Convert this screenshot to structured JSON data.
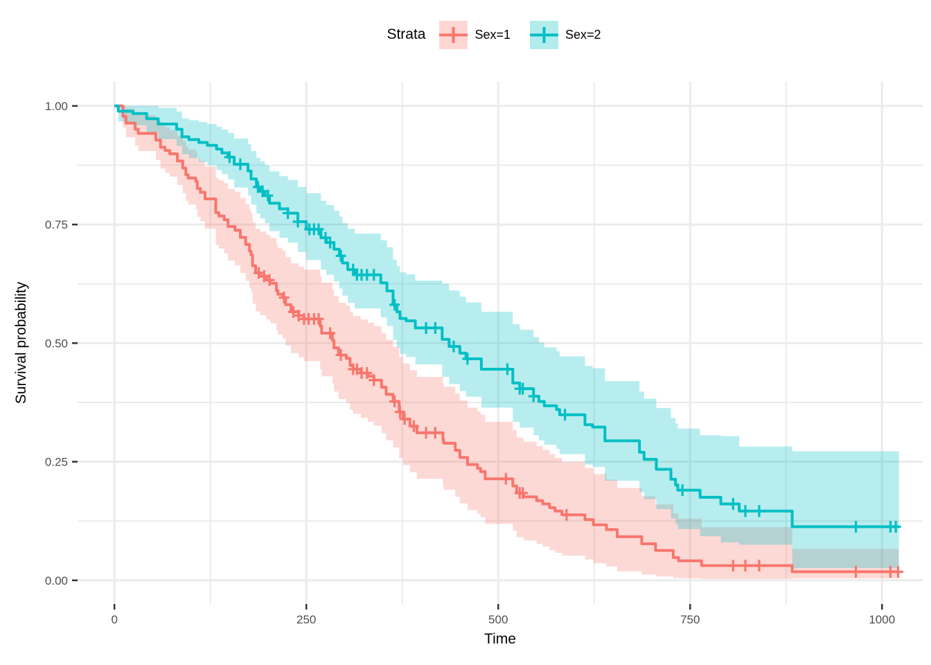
{
  "chart_data": {
    "type": "line",
    "subtype": "kaplan-meier-step-with-confidence-bands",
    "title": "",
    "xlabel": "Time",
    "ylabel": "Survival probability",
    "grid": true,
    "legend": {
      "title": "Strata",
      "position": "top",
      "entries": [
        {
          "label": "Sex=1",
          "color": "#F8766D"
        },
        {
          "label": "Sex=2",
          "color": "#00BFC4"
        }
      ]
    },
    "x_ticks": [
      0,
      250,
      500,
      750,
      1000
    ],
    "x_tick_labels": [
      "0",
      "250",
      "500",
      "750",
      "1000"
    ],
    "x_minor_ticks": [
      125,
      375,
      625,
      875
    ],
    "y_ticks": [
      0,
      0.25,
      0.5,
      0.75,
      1
    ],
    "y_tick_labels": [
      "0.00",
      "0.25",
      "0.50",
      "0.75",
      "1.00"
    ],
    "y_minor_ticks": [
      0.125,
      0.375,
      0.625,
      0.875
    ],
    "xlim": [
      -48,
      1053
    ],
    "ylim": [
      -0.05,
      1.051
    ],
    "series": [
      {
        "name": "Sex=1",
        "color": "#F8766D",
        "fill": "rgba(248,118,109,0.28)",
        "end_time": 1022,
        "points": [
          [
            0,
            1.0,
            1.0,
            1.0
          ],
          [
            11,
            0.978,
            0.954,
            1.0
          ],
          [
            15,
            0.964,
            0.934,
            0.995
          ],
          [
            27,
            0.951,
            0.916,
            0.987
          ],
          [
            31,
            0.942,
            0.905,
            0.981
          ],
          [
            54,
            0.928,
            0.886,
            0.972
          ],
          [
            60,
            0.913,
            0.868,
            0.96
          ],
          [
            66,
            0.906,
            0.859,
            0.955
          ],
          [
            72,
            0.899,
            0.851,
            0.949
          ],
          [
            82,
            0.884,
            0.833,
            0.937
          ],
          [
            89,
            0.869,
            0.816,
            0.926
          ],
          [
            93,
            0.855,
            0.8,
            0.914
          ],
          [
            96,
            0.848,
            0.792,
            0.908
          ],
          [
            106,
            0.841,
            0.782,
            0.903
          ],
          [
            108,
            0.826,
            0.766,
            0.89
          ],
          [
            112,
            0.818,
            0.757,
            0.884
          ],
          [
            118,
            0.804,
            0.741,
            0.872
          ],
          [
            132,
            0.775,
            0.707,
            0.848
          ],
          [
            136,
            0.768,
            0.699,
            0.843
          ],
          [
            143,
            0.76,
            0.689,
            0.837
          ],
          [
            148,
            0.746,
            0.674,
            0.825
          ],
          [
            157,
            0.738,
            0.664,
            0.819
          ],
          [
            164,
            0.723,
            0.648,
            0.806
          ],
          [
            171,
            0.708,
            0.631,
            0.793
          ],
          [
            176,
            0.694,
            0.616,
            0.781
          ],
          [
            178,
            0.686,
            0.607,
            0.774
          ],
          [
            180,
            0.663,
            0.583,
            0.754
          ],
          [
            184,
            0.648,
            0.567,
            0.741
          ],
          [
            190,
            0.641,
            0.559,
            0.735
          ],
          [
            198,
            0.633,
            0.55,
            0.728
          ],
          [
            203,
            0.626,
            0.542,
            0.722
          ],
          [
            211,
            0.611,
            0.526,
            0.708
          ],
          [
            213,
            0.603,
            0.518,
            0.701
          ],
          [
            219,
            0.596,
            0.51,
            0.695
          ],
          [
            223,
            0.581,
            0.495,
            0.681
          ],
          [
            230,
            0.566,
            0.479,
            0.668
          ],
          [
            240,
            0.558,
            0.47,
            0.661
          ],
          [
            247,
            0.551,
            0.462,
            0.655
          ],
          [
            268,
            0.536,
            0.445,
            0.641
          ],
          [
            270,
            0.521,
            0.43,
            0.627
          ],
          [
            284,
            0.506,
            0.414,
            0.613
          ],
          [
            286,
            0.49,
            0.398,
            0.599
          ],
          [
            292,
            0.475,
            0.382,
            0.585
          ],
          [
            302,
            0.468,
            0.374,
            0.579
          ],
          [
            307,
            0.453,
            0.359,
            0.565
          ],
          [
            311,
            0.445,
            0.351,
            0.557
          ],
          [
            321,
            0.437,
            0.342,
            0.55
          ],
          [
            330,
            0.43,
            0.334,
            0.543
          ],
          [
            338,
            0.422,
            0.326,
            0.536
          ],
          [
            348,
            0.407,
            0.31,
            0.521
          ],
          [
            354,
            0.392,
            0.295,
            0.507
          ],
          [
            363,
            0.377,
            0.28,
            0.492
          ],
          [
            371,
            0.355,
            0.258,
            0.471
          ],
          [
            376,
            0.34,
            0.243,
            0.457
          ],
          [
            385,
            0.325,
            0.228,
            0.443
          ],
          [
            394,
            0.311,
            0.214,
            0.429
          ],
          [
            428,
            0.296,
            0.198,
            0.415
          ],
          [
            429,
            0.289,
            0.191,
            0.408
          ],
          [
            444,
            0.274,
            0.176,
            0.394
          ],
          [
            450,
            0.259,
            0.162,
            0.379
          ],
          [
            460,
            0.244,
            0.148,
            0.364
          ],
          [
            473,
            0.236,
            0.14,
            0.356
          ],
          [
            477,
            0.229,
            0.133,
            0.349
          ],
          [
            483,
            0.214,
            0.119,
            0.334
          ],
          [
            519,
            0.199,
            0.105,
            0.317
          ],
          [
            524,
            0.184,
            0.091,
            0.301
          ],
          [
            533,
            0.176,
            0.084,
            0.292
          ],
          [
            550,
            0.168,
            0.077,
            0.283
          ],
          [
            558,
            0.161,
            0.071,
            0.275
          ],
          [
            567,
            0.153,
            0.064,
            0.266
          ],
          [
            574,
            0.146,
            0.058,
            0.258
          ],
          [
            583,
            0.138,
            0.052,
            0.249
          ],
          [
            613,
            0.128,
            0.044,
            0.237
          ],
          [
            624,
            0.117,
            0.036,
            0.224
          ],
          [
            641,
            0.107,
            0.029,
            0.212
          ],
          [
            655,
            0.092,
            0.019,
            0.195
          ],
          [
            687,
            0.077,
            0.012,
            0.177
          ],
          [
            705,
            0.063,
            0.008,
            0.16
          ],
          [
            728,
            0.048,
            0.005,
            0.141
          ],
          [
            735,
            0.041,
            0.004,
            0.13
          ],
          [
            765,
            0.031,
            0.003,
            0.112
          ],
          [
            883,
            0.018,
            0.004,
            0.066
          ]
        ],
        "censor_times": [
          188,
          195,
          202,
          221,
          233,
          240,
          247,
          253,
          260,
          266,
          281,
          295,
          311,
          316,
          322,
          329,
          338,
          365,
          372,
          378,
          390,
          406,
          418,
          510,
          528,
          532,
          589,
          806,
          822,
          840,
          966,
          1011,
          1021
        ]
      },
      {
        "name": "Sex=2",
        "color": "#00BFC4",
        "fill": "rgba(0,191,196,0.28)",
        "end_time": 1022,
        "points": [
          [
            0,
            1.0,
            1.0,
            1.0
          ],
          [
            5,
            0.989,
            0.967,
            1.0
          ],
          [
            24,
            0.984,
            0.959,
            1.0
          ],
          [
            42,
            0.973,
            0.944,
            1.0
          ],
          [
            57,
            0.962,
            0.93,
            0.996
          ],
          [
            81,
            0.951,
            0.916,
            0.988
          ],
          [
            88,
            0.935,
            0.898,
            0.974
          ],
          [
            97,
            0.929,
            0.89,
            0.97
          ],
          [
            110,
            0.923,
            0.882,
            0.966
          ],
          [
            121,
            0.917,
            0.875,
            0.962
          ],
          [
            133,
            0.909,
            0.865,
            0.956
          ],
          [
            140,
            0.901,
            0.856,
            0.95
          ],
          [
            148,
            0.892,
            0.845,
            0.943
          ],
          [
            156,
            0.877,
            0.828,
            0.931
          ],
          [
            174,
            0.863,
            0.811,
            0.92
          ],
          [
            178,
            0.846,
            0.792,
            0.905
          ],
          [
            185,
            0.829,
            0.773,
            0.891
          ],
          [
            190,
            0.82,
            0.763,
            0.883
          ],
          [
            196,
            0.811,
            0.753,
            0.875
          ],
          [
            202,
            0.795,
            0.736,
            0.862
          ],
          [
            215,
            0.783,
            0.722,
            0.852
          ],
          [
            226,
            0.774,
            0.712,
            0.844
          ],
          [
            239,
            0.756,
            0.692,
            0.829
          ],
          [
            250,
            0.74,
            0.675,
            0.816
          ],
          [
            269,
            0.722,
            0.655,
            0.8
          ],
          [
            276,
            0.712,
            0.644,
            0.791
          ],
          [
            286,
            0.698,
            0.63,
            0.779
          ],
          [
            293,
            0.684,
            0.615,
            0.767
          ],
          [
            297,
            0.669,
            0.6,
            0.753
          ],
          [
            304,
            0.655,
            0.585,
            0.741
          ],
          [
            313,
            0.644,
            0.573,
            0.731
          ],
          [
            347,
            0.627,
            0.554,
            0.717
          ],
          [
            355,
            0.61,
            0.536,
            0.702
          ],
          [
            363,
            0.581,
            0.507,
            0.676
          ],
          [
            368,
            0.566,
            0.491,
            0.662
          ],
          [
            372,
            0.552,
            0.477,
            0.649
          ],
          [
            380,
            0.547,
            0.471,
            0.645
          ],
          [
            392,
            0.532,
            0.455,
            0.632
          ],
          [
            427,
            0.508,
            0.429,
            0.625
          ],
          [
            436,
            0.493,
            0.414,
            0.611
          ],
          [
            450,
            0.479,
            0.399,
            0.598
          ],
          [
            458,
            0.467,
            0.387,
            0.586
          ],
          [
            478,
            0.445,
            0.364,
            0.566
          ],
          [
            519,
            0.416,
            0.334,
            0.54
          ],
          [
            528,
            0.404,
            0.322,
            0.528
          ],
          [
            546,
            0.388,
            0.306,
            0.513
          ],
          [
            553,
            0.377,
            0.295,
            0.501
          ],
          [
            560,
            0.368,
            0.286,
            0.491
          ],
          [
            576,
            0.36,
            0.277,
            0.483
          ],
          [
            580,
            0.349,
            0.266,
            0.472
          ],
          [
            613,
            0.328,
            0.244,
            0.452
          ],
          [
            623,
            0.323,
            0.239,
            0.447
          ],
          [
            639,
            0.294,
            0.21,
            0.42
          ],
          [
            684,
            0.27,
            0.186,
            0.398
          ],
          [
            690,
            0.255,
            0.171,
            0.383
          ],
          [
            706,
            0.234,
            0.15,
            0.363
          ],
          [
            725,
            0.213,
            0.13,
            0.342
          ],
          [
            731,
            0.201,
            0.118,
            0.331
          ],
          [
            734,
            0.19,
            0.108,
            0.32
          ],
          [
            763,
            0.175,
            0.093,
            0.306
          ],
          [
            790,
            0.161,
            0.08,
            0.304
          ],
          [
            814,
            0.146,
            0.075,
            0.282
          ],
          [
            883,
            0.113,
            0.026,
            0.272
          ]
        ],
        "censor_times": [
          150,
          164,
          187,
          193,
          200,
          226,
          239,
          254,
          260,
          266,
          275,
          281,
          295,
          311,
          316,
          322,
          329,
          338,
          365,
          406,
          418,
          442,
          460,
          512,
          528,
          532,
          546,
          587,
          740,
          806,
          822,
          840,
          966,
          1011,
          1018
        ]
      }
    ]
  },
  "style": {
    "grid_color": "#EBEBEB",
    "tick_color": "#333333",
    "tick_label_color": "#4D4D4D"
  }
}
